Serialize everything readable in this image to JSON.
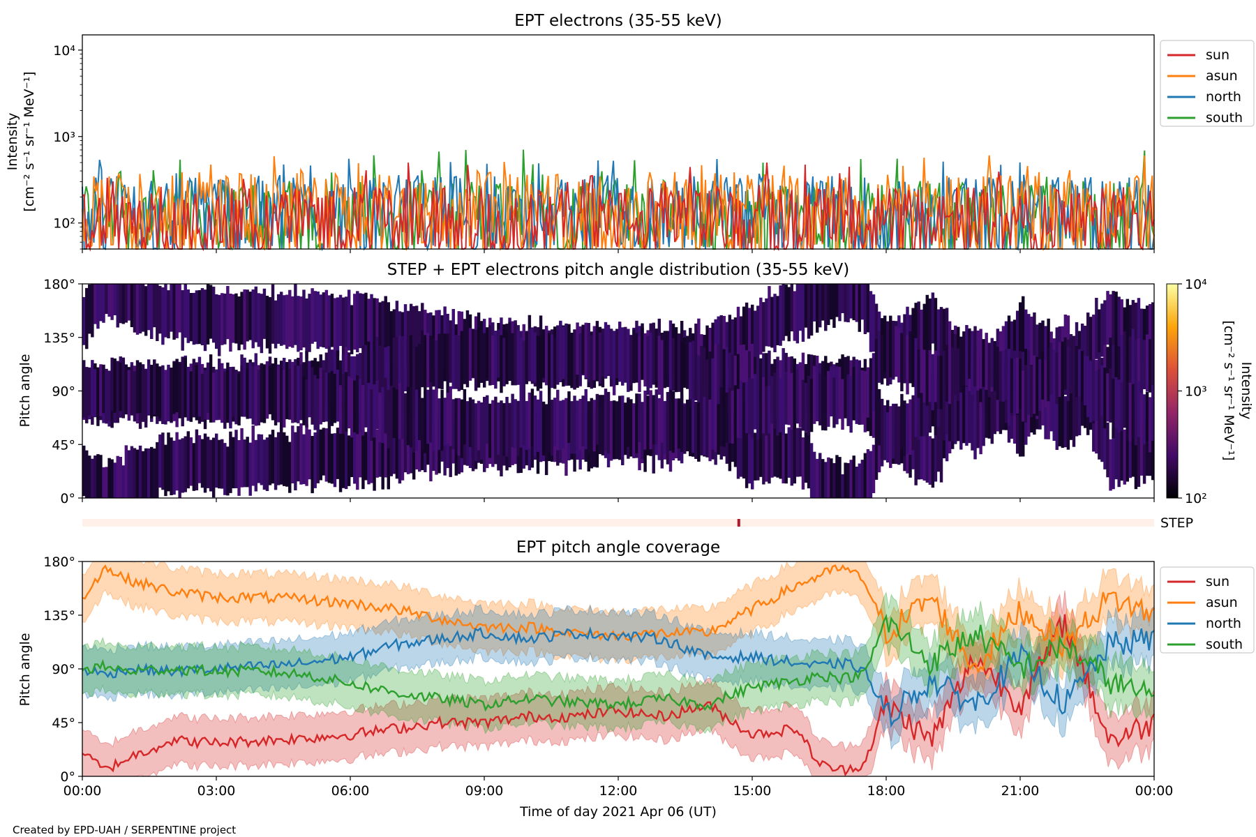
{
  "figure": {
    "footer": "Created by EPD-UAH / SERPENTINE project",
    "xlabel": "Time of day 2021 Apr 06 (UT)",
    "xticks": [
      "00:00",
      "03:00",
      "06:00",
      "09:00",
      "12:00",
      "15:00",
      "18:00",
      "21:00",
      "00:00"
    ]
  },
  "colors": {
    "sun": "#d62728",
    "asun": "#ff7f0e",
    "north": "#1f77b4",
    "south": "#2ca02c"
  },
  "chart_data": [
    {
      "type": "line",
      "title": "EPT electrons (35-55 keV)",
      "ylabel_line1": "Intensity",
      "ylabel_line2": "[cm⁻² s⁻¹ sr⁻¹ MeV⁻¹]",
      "yscale": "log",
      "ylim": [
        50,
        15000
      ],
      "yticks": [
        "10²",
        "10³",
        "10⁴"
      ],
      "xlim_hours": [
        0,
        24
      ],
      "legend": [
        "sun",
        "asun",
        "north",
        "south"
      ],
      "legend_position": "outside-top-right",
      "series": [
        {
          "name": "sun",
          "baseline_min": 50,
          "typical_peak": 220,
          "max": 520
        },
        {
          "name": "asun",
          "baseline_min": 50,
          "typical_peak": 320,
          "max": 620
        },
        {
          "name": "north",
          "baseline_min": 50,
          "typical_peak": 300,
          "max": 560
        },
        {
          "name": "south",
          "baseline_min": 50,
          "typical_peak": 260,
          "max": 720
        }
      ]
    },
    {
      "type": "heatmap",
      "title": "STEP + EPT electrons pitch angle distribution (35-55 keV)",
      "ylabel": "Pitch angle",
      "yticks": [
        "0°",
        "45°",
        "90°",
        "135°",
        "180°"
      ],
      "ylim": [
        0,
        180
      ],
      "colorbar": {
        "label_line1": "Intensity",
        "label_line2": "[cm⁻² s⁻¹ sr⁻¹ MeV⁻¹]",
        "scale": "log",
        "range": [
          100,
          10000
        ],
        "ticks": [
          "10²",
          "10³",
          "10⁴"
        ],
        "colormap": "inferno"
      },
      "step_strip": {
        "label": "STEP",
        "marker_hour": 14.7
      }
    },
    {
      "type": "line",
      "title": "EPT pitch angle coverage",
      "ylabel": "Pitch angle",
      "ylim": [
        0,
        180
      ],
      "yticks": [
        "0°",
        "45°",
        "90°",
        "135°",
        "180°"
      ],
      "x_hours": [
        0,
        0.5,
        1,
        2,
        3,
        4,
        5,
        6,
        7,
        8,
        9,
        10,
        11,
        12,
        13,
        14,
        15,
        16,
        16.5,
        17,
        17.5,
        18,
        19,
        20,
        21,
        22,
        23,
        24
      ],
      "legend": [
        "sun",
        "asun",
        "north",
        "south"
      ],
      "legend_position": "outside-top-right",
      "series": [
        {
          "name": "sun",
          "values": [
            20,
            5,
            15,
            30,
            28,
            30,
            32,
            35,
            40,
            45,
            45,
            50,
            50,
            55,
            50,
            60,
            35,
            40,
            10,
            5,
            10,
            60,
            30,
            100,
            60,
            130,
            30,
            45
          ]
        },
        {
          "name": "asun",
          "values": [
            150,
            175,
            165,
            155,
            150,
            150,
            148,
            145,
            140,
            132,
            125,
            125,
            120,
            118,
            120,
            120,
            140,
            160,
            168,
            175,
            165,
            120,
            150,
            90,
            140,
            110,
            150,
            135
          ]
        },
        {
          "name": "north",
          "values": [
            90,
            85,
            90,
            88,
            90,
            92,
            95,
            100,
            110,
            115,
            120,
            115,
            120,
            118,
            115,
            100,
            100,
            95,
            92,
            95,
            90,
            50,
            80,
            60,
            100,
            60,
            110,
            115
          ]
        },
        {
          "name": "south",
          "values": [
            90,
            92,
            88,
            90,
            88,
            88,
            85,
            78,
            70,
            65,
            60,
            65,
            62,
            60,
            65,
            60,
            75,
            80,
            85,
            82,
            85,
            130,
            95,
            120,
            90,
            110,
            80,
            65
          ]
        }
      ],
      "band_halfwidth_deg": 20
    }
  ]
}
